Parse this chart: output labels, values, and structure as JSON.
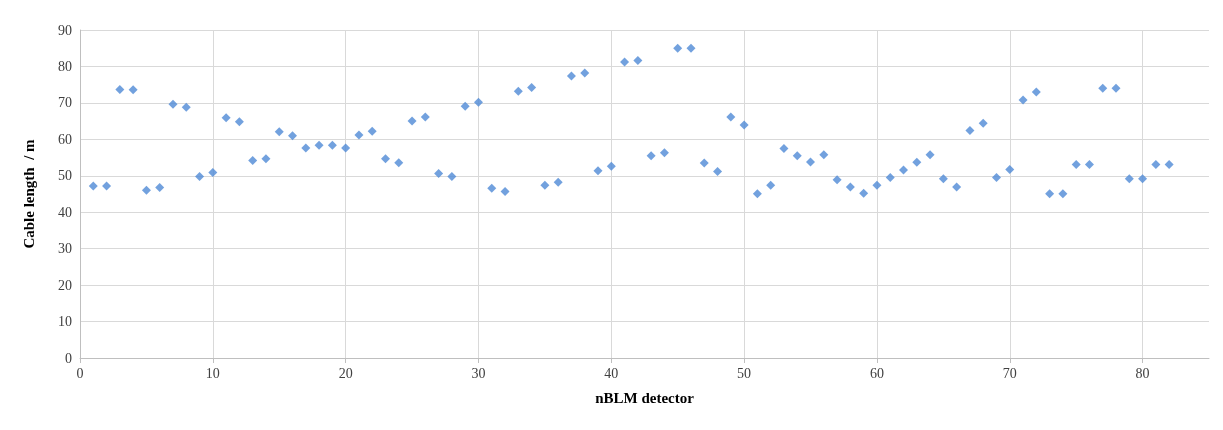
{
  "chart_data": {
    "type": "scatter",
    "xlabel": "nBLM detector",
    "ylabel": "Cable length  / m",
    "x": [
      1,
      2,
      3,
      4,
      5,
      6,
      7,
      8,
      9,
      10,
      11,
      12,
      13,
      14,
      15,
      16,
      17,
      18,
      19,
      20,
      21,
      22,
      23,
      24,
      25,
      26,
      27,
      28,
      29,
      30,
      31,
      32,
      33,
      34,
      35,
      36,
      37,
      38,
      39,
      40,
      41,
      42,
      43,
      44,
      45,
      46,
      47,
      48,
      49,
      50,
      51,
      52,
      53,
      54,
      55,
      56,
      57,
      58,
      59,
      60,
      61,
      62,
      63,
      64,
      65,
      66,
      67,
      68,
      69,
      70,
      71,
      72,
      73,
      74,
      75,
      76,
      77,
      78,
      79,
      80,
      81,
      82
    ],
    "values": [
      47.2,
      47.2,
      73.7,
      73.6,
      46,
      46.8,
      69.6,
      68.8,
      49.8,
      50.9,
      65.9,
      64.8,
      54.2,
      54.7,
      62.1,
      61,
      57.6,
      58.4,
      58.4,
      57.6,
      61.2,
      62.2,
      54.7,
      53.6,
      65,
      66.1,
      50.6,
      49.8,
      69.1,
      70.2,
      46.6,
      45.7,
      73.2,
      74.2,
      47.4,
      48.2,
      77.4,
      78.2,
      51.4,
      52.6,
      81.2,
      81.6,
      55.5,
      56.3,
      85,
      85,
      53.5,
      51.2,
      66.1,
      63.9,
      45.1,
      47.4,
      57.5,
      55.5,
      53.8,
      55.8,
      48.9,
      46.9,
      45.2,
      47.4,
      49.5,
      51.6,
      53.7,
      55.8,
      49.2,
      46.9,
      62.4,
      64.4,
      49.5,
      51.7,
      70.8,
      73,
      45.1,
      45.1,
      53.1,
      53.1,
      74,
      74,
      49.2,
      49.2,
      53.1,
      53.1
    ],
    "color": "#4f8ad6",
    "marker": "diamond",
    "xlim": [
      0,
      85
    ],
    "xticks": [
      0,
      10,
      20,
      30,
      40,
      50,
      60,
      70,
      80
    ],
    "ylim": [
      0,
      90
    ],
    "yticks": [
      0,
      10,
      20,
      30,
      40,
      50,
      60,
      70,
      80,
      90
    ],
    "grid": true
  }
}
